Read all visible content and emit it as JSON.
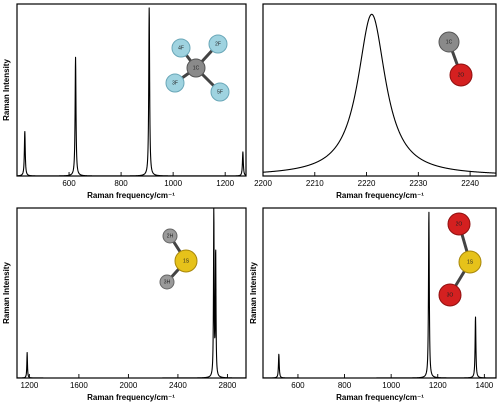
{
  "chart_data": [
    {
      "type": "line",
      "xlabel": "Raman frequency/cm⁻¹",
      "ylabel": "Raman Intensity",
      "xlim": [
        400,
        1280
      ],
      "ylim": [
        0,
        1
      ],
      "xticks": [
        600,
        800,
        1000,
        1200
      ],
      "grid": false,
      "peaks": [
        {
          "x": 430,
          "height": 0.26,
          "width": 4
        },
        {
          "x": 625,
          "height": 0.69,
          "width": 4
        },
        {
          "x": 908,
          "height": 0.98,
          "width": 4
        },
        {
          "x": 1268,
          "height": 0.14,
          "width": 4
        }
      ],
      "molecule": {
        "name": "CF4",
        "atoms": [
          {
            "label": "1C",
            "color": "#8a8a8a"
          },
          {
            "label": "2F",
            "color": "#9fd3e0"
          },
          {
            "label": "3F",
            "color": "#9fd3e0"
          },
          {
            "label": "4F",
            "color": "#9fd3e0"
          },
          {
            "label": "5F",
            "color": "#9fd3e0"
          }
        ]
      }
    },
    {
      "type": "line",
      "xlabel": "Raman frequency/cm⁻¹",
      "ylabel": "",
      "xlim": [
        2200,
        2245
      ],
      "ylim": [
        0,
        1
      ],
      "xticks": [
        2200,
        2210,
        2220,
        2230,
        2240
      ],
      "grid": false,
      "peaks": [
        {
          "x": 2221,
          "height": 0.94,
          "width": 6.5,
          "baseline": 0.04
        }
      ],
      "molecule": {
        "name": "CO",
        "atoms": [
          {
            "label": "1C",
            "color": "#8a8a8a"
          },
          {
            "label": "2O",
            "color": "#d42020"
          }
        ]
      }
    },
    {
      "type": "line",
      "xlabel": "Raman frequency/cm⁻¹",
      "ylabel": "Raman Intensity",
      "xlim": [
        1100,
        2950
      ],
      "ylim": [
        0,
        1
      ],
      "xticks": [
        1200,
        1600,
        2000,
        2400,
        2800
      ],
      "grid": false,
      "peaks": [
        {
          "x": 1182,
          "height": 0.15,
          "width": 6
        },
        {
          "x": 2690,
          "height": 0.98,
          "width": 6
        },
        {
          "x": 2705,
          "height": 0.74,
          "width": 6
        }
      ],
      "molecule": {
        "name": "H2S",
        "atoms": [
          {
            "label": "1S",
            "color": "#e6c21a"
          },
          {
            "label": "2H",
            "color": "#9a9a9a"
          },
          {
            "label": "3H",
            "color": "#9a9a9a"
          }
        ]
      }
    },
    {
      "type": "line",
      "xlabel": "Raman frequency/cm⁻¹",
      "ylabel": "Raman Intensity",
      "xlim": [
        450,
        1450
      ],
      "ylim": [
        0,
        1
      ],
      "xticks": [
        600,
        800,
        1000,
        1200,
        1400
      ],
      "grid": false,
      "peaks": [
        {
          "x": 518,
          "height": 0.14,
          "width": 4
        },
        {
          "x": 1162,
          "height": 0.98,
          "width": 4
        },
        {
          "x": 1362,
          "height": 0.36,
          "width": 4
        }
      ],
      "molecule": {
        "name": "SO2",
        "atoms": [
          {
            "label": "1S",
            "color": "#e6c21a"
          },
          {
            "label": "2O",
            "color": "#d42020"
          },
          {
            "label": "3O",
            "color": "#d42020"
          }
        ]
      }
    }
  ]
}
